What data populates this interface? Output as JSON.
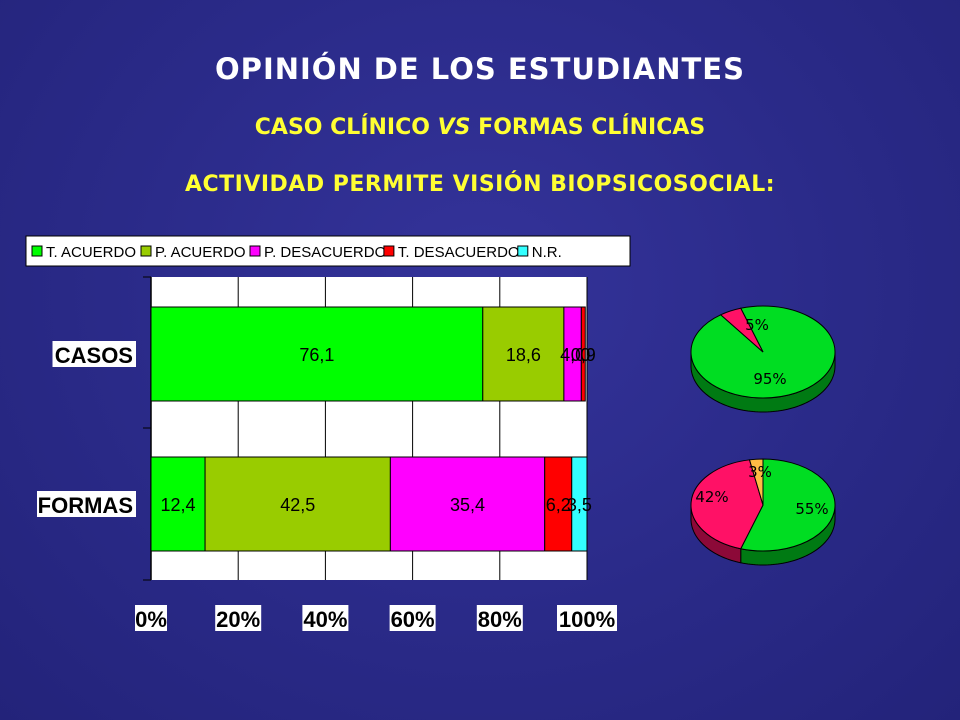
{
  "slide": {
    "title": "OPINIÓN DE LOS ESTUDIANTES",
    "subtitle_a": "CASO CLÍNICO ",
    "subtitle_vs": "VS",
    "subtitle_b": " FORMAS CLÍNICAS",
    "question": "ACTIVIDAD PERMITE VISIÓN BIOPSICOSOCIAL:"
  },
  "chart_data": [
    {
      "type": "bar",
      "orientation": "horizontal",
      "stacked": "percent",
      "categories": [
        "CASOS",
        "FORMAS"
      ],
      "legend_position": "top",
      "xlim": [
        0,
        100
      ],
      "xticks": [
        "0%",
        "20%",
        "40%",
        "60%",
        "80%",
        "100%"
      ],
      "series": [
        {
          "name": "T. ACUERDO",
          "color": "#00ff00",
          "values": [
            76.1,
            12.4
          ],
          "labels": [
            "76,1",
            "12,4"
          ]
        },
        {
          "name": "P. ACUERDO",
          "color": "#99cc00",
          "values": [
            18.6,
            42.5
          ],
          "labels": [
            "18,6",
            "42,5"
          ]
        },
        {
          "name": "P. DESACUERDO",
          "color": "#ff00ff",
          "values": [
            4.0,
            35.4
          ],
          "labels": [
            "4,0",
            "35,4"
          ]
        },
        {
          "name": "T. DESACUERDO",
          "color": "#ff0000",
          "values": [
            0.9,
            6.2
          ],
          "labels": [
            "0,9",
            "6,2"
          ]
        },
        {
          "name": "N.R.",
          "color": "#33ffff",
          "values": [
            0.0,
            3.5
          ],
          "labels": [
            "0",
            "3,5"
          ]
        }
      ]
    },
    {
      "type": "pie",
      "slices": [
        {
          "value": 95,
          "label": "95%",
          "color": "#00dd22"
        },
        {
          "value": 5,
          "label": "5%",
          "color": "#ff1166"
        }
      ]
    },
    {
      "type": "pie",
      "slices": [
        {
          "value": 55,
          "label": "55%",
          "color": "#00dd22"
        },
        {
          "value": 42,
          "label": "42%",
          "color": "#ff1166"
        },
        {
          "value": 3,
          "label": "3%",
          "color": "#ffbb44"
        }
      ]
    }
  ]
}
